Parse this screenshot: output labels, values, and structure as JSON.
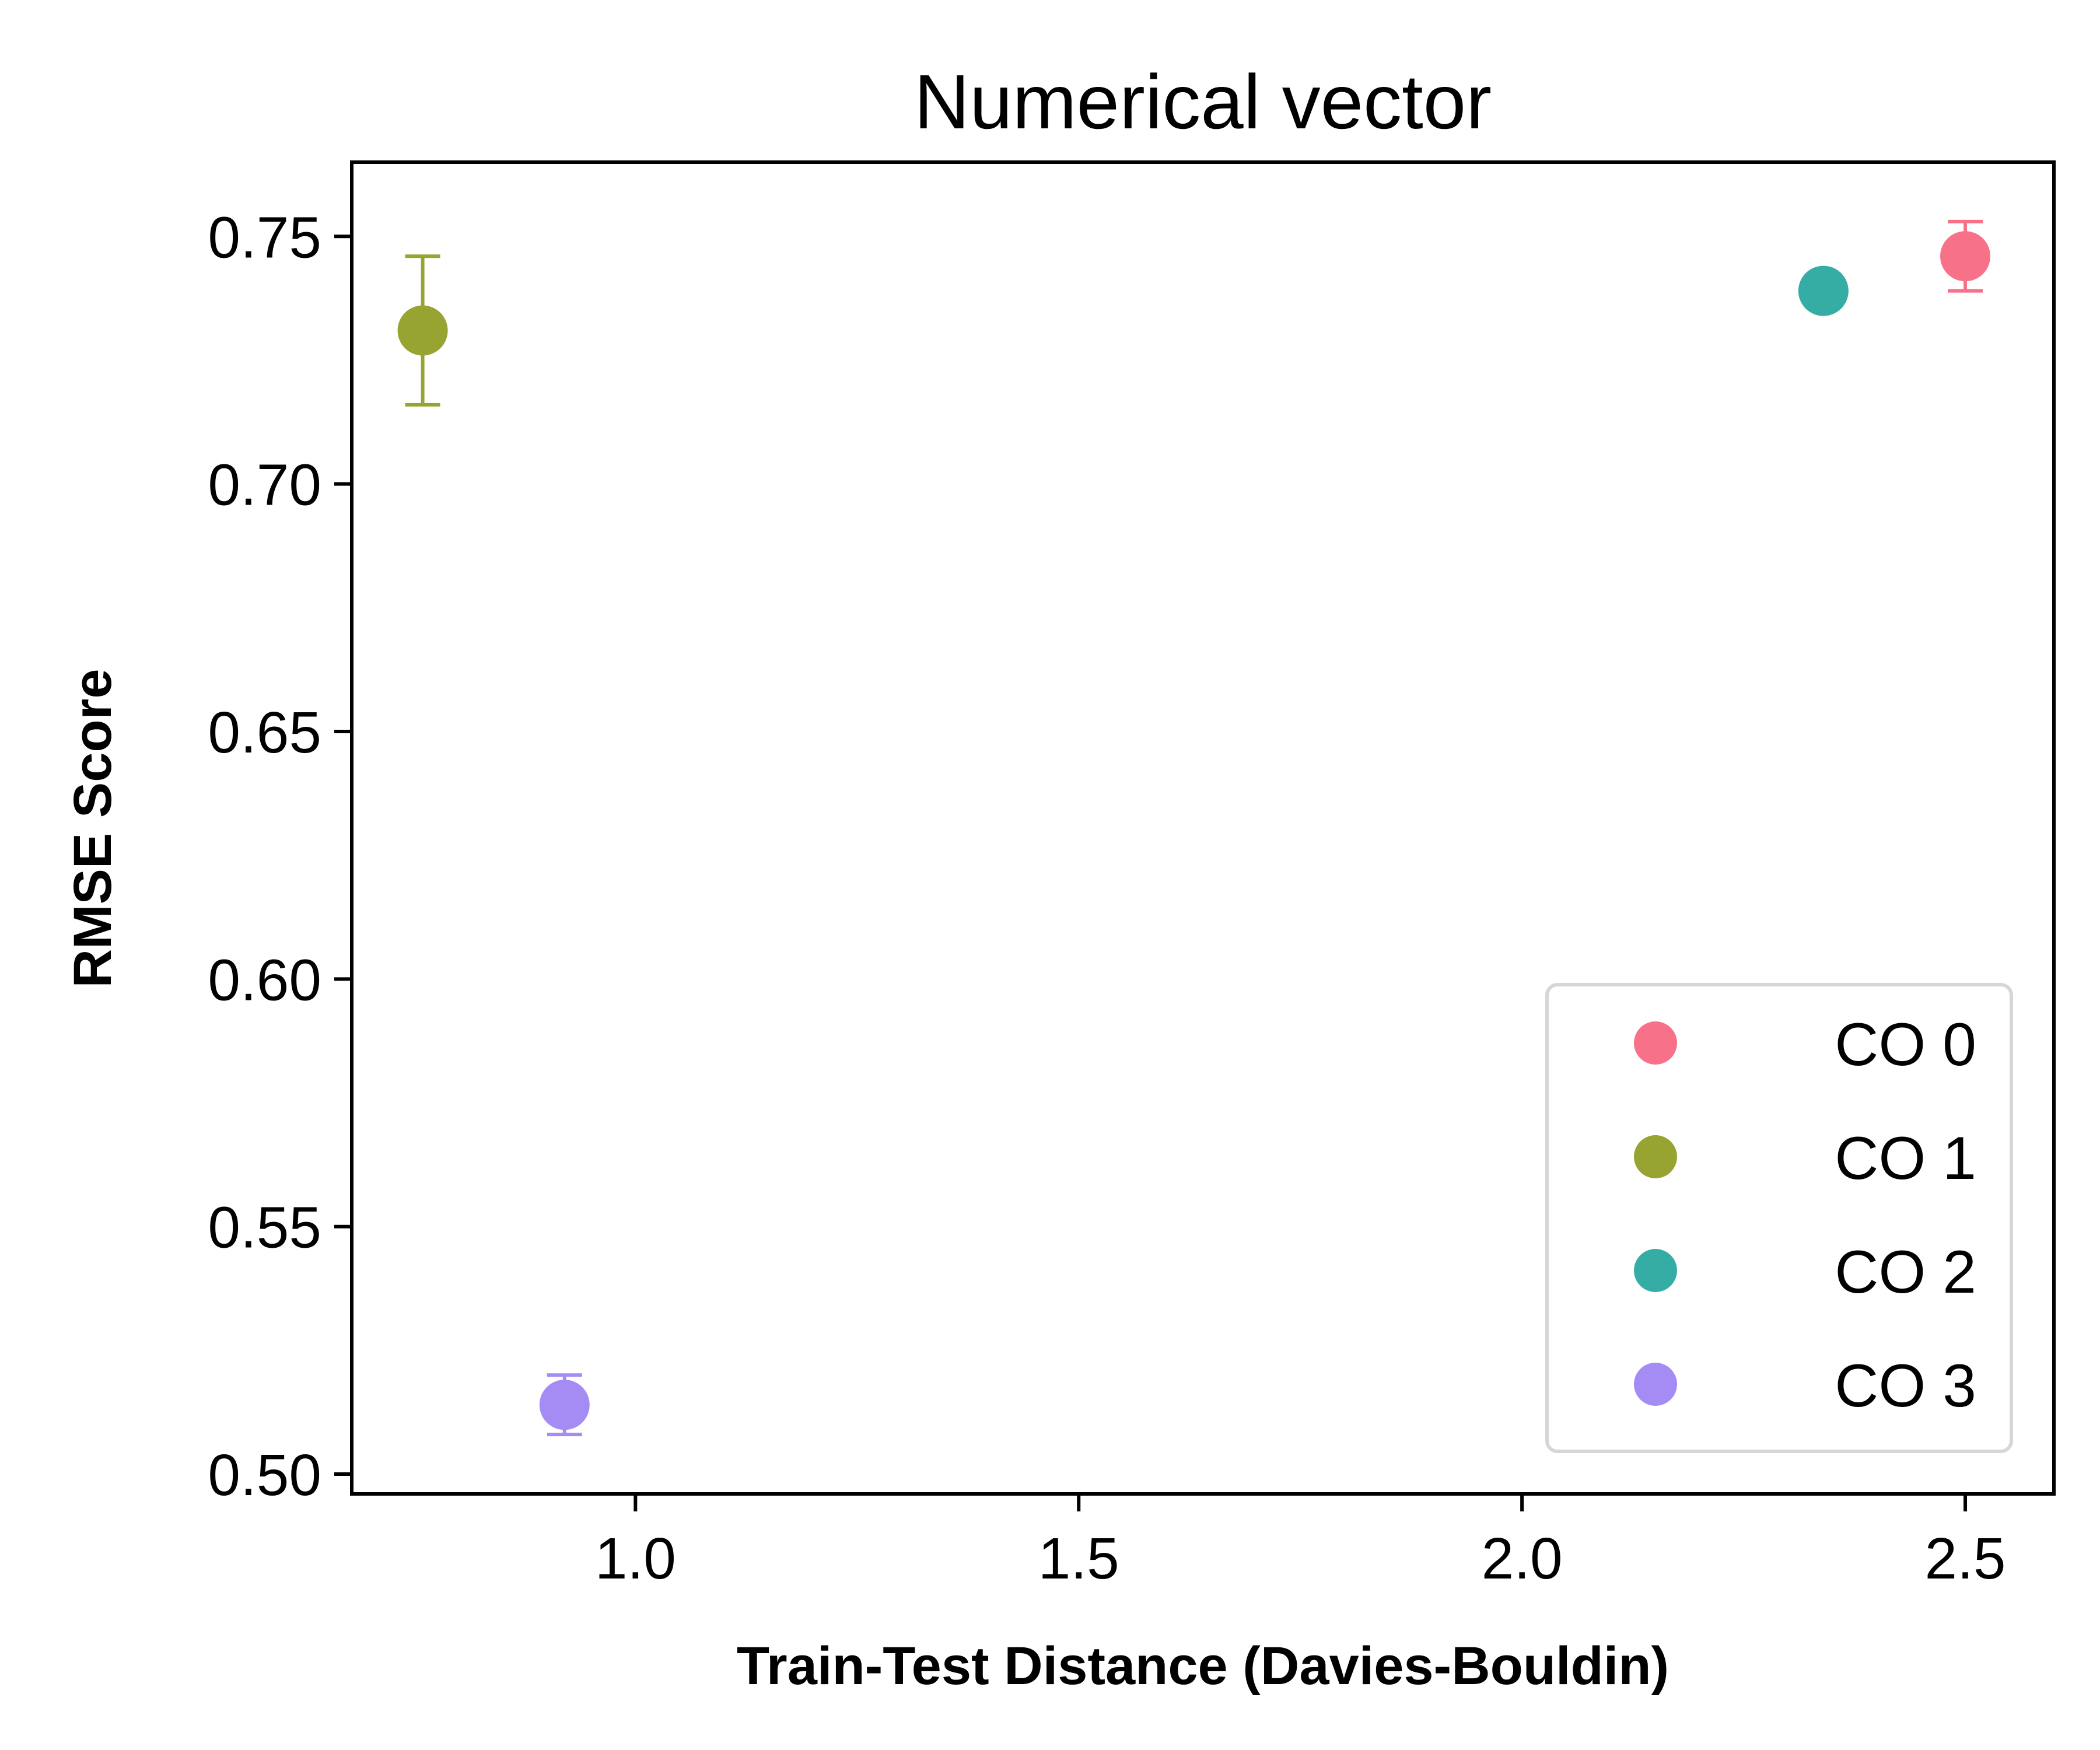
{
  "chart_data": {
    "type": "scatter",
    "title": "Numerical vector",
    "xlabel": "Train-Test Distance (Davies-Bouldin)",
    "ylabel": "RMSE Score",
    "xlim": [
      0.68,
      2.6
    ],
    "ylim": [
      0.496,
      0.765
    ],
    "xticks": [
      1.0,
      1.5,
      2.0,
      2.5
    ],
    "xtick_labels": [
      "1.0",
      "1.5",
      "2.0",
      "2.5"
    ],
    "yticks": [
      0.5,
      0.55,
      0.6,
      0.65,
      0.7,
      0.75
    ],
    "ytick_labels": [
      "0.50",
      "0.55",
      "0.60",
      "0.65",
      "0.70",
      "0.75"
    ],
    "grid": false,
    "legend_position": "lower-right",
    "series": [
      {
        "name": "CO 0",
        "color": "#f77189",
        "x": 2.5,
        "y": 0.746,
        "yerr": 0.007
      },
      {
        "name": "CO 1",
        "color": "#97a431",
        "x": 0.76,
        "y": 0.731,
        "yerr": 0.015
      },
      {
        "name": "CO 2",
        "color": "#36ada4",
        "x": 2.34,
        "y": 0.739,
        "yerr": 0.003
      },
      {
        "name": "CO 3",
        "color": "#a48cf4",
        "x": 0.92,
        "y": 0.514,
        "yerr": 0.006
      }
    ]
  }
}
